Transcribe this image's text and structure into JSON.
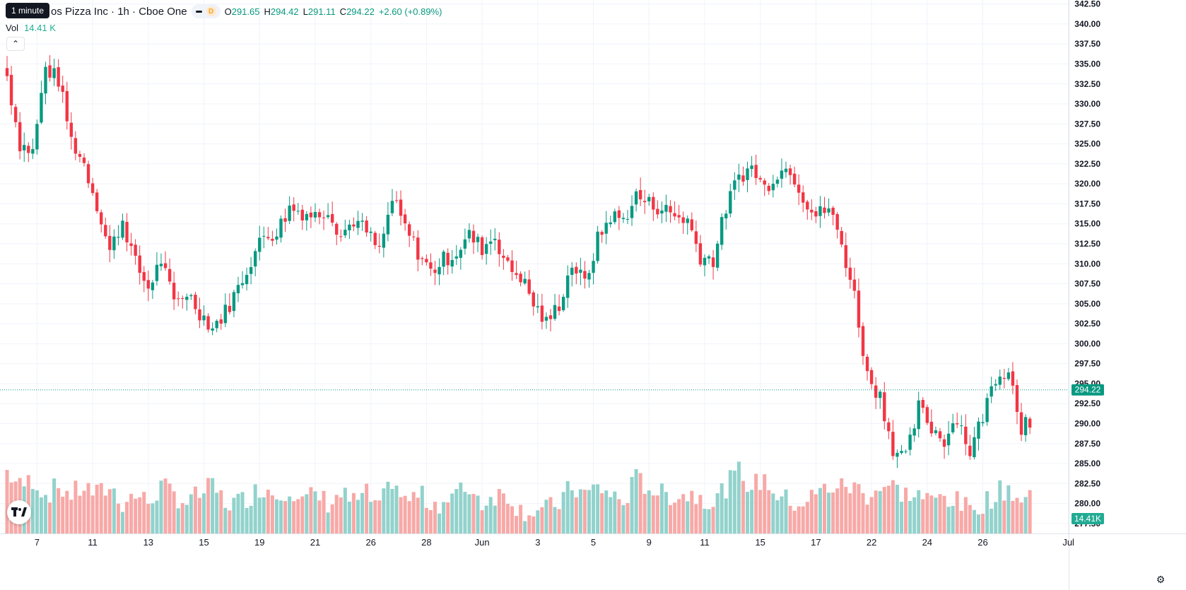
{
  "legend": {
    "title": "os Pizza Inc · 1h · Cboe One",
    "tooltip": "1 minute",
    "d_badge": "D",
    "ohlc": {
      "o_label": "O",
      "o": "291.65",
      "h_label": "H",
      "h": "294.42",
      "l_label": "L",
      "l": "291.11",
      "c_label": "C",
      "c": "294.22",
      "change": "+2.60 (+0.89%)"
    },
    "vol_label": "Vol",
    "vol_value": "14.41 K"
  },
  "colors": {
    "up": "#089981",
    "down": "#f23645",
    "vol_up": "#92d2cc",
    "vol_down": "#f7a9a7",
    "grid": "#f0f3fa",
    "price_line": "#089981"
  },
  "icons": {
    "collapse": "chevron-up-icon",
    "logo": "tradingview-logo",
    "settings": "gear-icon"
  },
  "chart_data": {
    "type": "candlestick",
    "ylim": [
      276.25,
      343.0
    ],
    "y_ticks": [
      "342.50",
      "340.00",
      "337.50",
      "335.00",
      "332.50",
      "330.00",
      "327.50",
      "325.00",
      "322.50",
      "320.00",
      "317.50",
      "315.00",
      "312.50",
      "310.00",
      "307.50",
      "305.00",
      "302.50",
      "300.00",
      "297.50",
      "295.00",
      "292.50",
      "290.00",
      "287.50",
      "285.00",
      "282.50",
      "280.00",
      "277.50"
    ],
    "x_ticks": [
      {
        "label": "7",
        "index": 7
      },
      {
        "label": "11",
        "index": 20
      },
      {
        "label": "13",
        "index": 33
      },
      {
        "label": "15",
        "index": 46
      },
      {
        "label": "19",
        "index": 59
      },
      {
        "label": "21",
        "index": 72
      },
      {
        "label": "26",
        "index": 85
      },
      {
        "label": "28",
        "index": 98
      },
      {
        "label": "Jun",
        "index": 111
      },
      {
        "label": "3",
        "index": 124
      },
      {
        "label": "5",
        "index": 137
      },
      {
        "label": "9",
        "index": 150
      },
      {
        "label": "11",
        "index": 163
      },
      {
        "label": "15",
        "index": 176
      },
      {
        "label": "17",
        "index": 189
      },
      {
        "label": "22",
        "index": 202
      },
      {
        "label": "24",
        "index": 215
      },
      {
        "label": "26",
        "index": 228
      },
      {
        "label": "Jul",
        "index": 248
      }
    ],
    "last_price": "294.22",
    "last_volume": "14.41K",
    "anchors": [
      [
        0,
        333.5,
        8
      ],
      [
        3,
        325.0,
        6
      ],
      [
        6,
        324.0,
        7
      ],
      [
        9,
        334.5,
        5
      ],
      [
        12,
        333.0,
        6
      ],
      [
        15,
        325.5,
        5
      ],
      [
        18,
        322.5,
        6
      ],
      [
        21,
        317.5,
        5
      ],
      [
        24,
        311.5,
        6
      ],
      [
        27,
        315.5,
        4
      ],
      [
        30,
        310.0,
        5
      ],
      [
        33,
        307.0,
        4
      ],
      [
        36,
        310.5,
        6
      ],
      [
        39,
        305.0,
        5
      ],
      [
        42,
        306.5,
        4
      ],
      [
        45,
        304.0,
        5
      ],
      [
        48,
        302.0,
        6
      ],
      [
        51,
        304.0,
        4
      ],
      [
        54,
        307.0,
        4
      ],
      [
        57,
        310.5,
        5
      ],
      [
        60,
        313.5,
        6
      ],
      [
        63,
        314.0,
        5
      ],
      [
        66,
        317.0,
        6
      ],
      [
        69,
        316.5,
        4
      ],
      [
        72,
        316.0,
        5
      ],
      [
        75,
        317.0,
        4
      ],
      [
        78,
        313.5,
        5
      ],
      [
        81,
        315.5,
        4
      ],
      [
        84,
        314.0,
        5
      ],
      [
        87,
        311.5,
        3
      ],
      [
        90,
        318.0,
        7
      ],
      [
        93,
        314.5,
        4
      ],
      [
        96,
        311.5,
        5
      ],
      [
        99,
        309.0,
        4
      ],
      [
        102,
        310.5,
        4
      ],
      [
        105,
        311.5,
        5
      ],
      [
        108,
        313.5,
        6
      ],
      [
        111,
        312.0,
        4
      ],
      [
        114,
        313.5,
        5
      ],
      [
        117,
        309.5,
        5
      ],
      [
        120,
        308.5,
        3
      ],
      [
        123,
        305.0,
        3
      ],
      [
        126,
        302.5,
        3
      ],
      [
        129,
        305.0,
        4
      ],
      [
        132,
        310.0,
        6
      ],
      [
        135,
        307.5,
        5
      ],
      [
        138,
        313.0,
        6
      ],
      [
        141,
        316.0,
        5
      ],
      [
        144,
        315.5,
        4
      ],
      [
        147,
        318.5,
        7
      ],
      [
        150,
        317.5,
        6
      ],
      [
        153,
        317.0,
        5
      ],
      [
        156,
        316.0,
        5
      ],
      [
        159,
        315.5,
        5
      ],
      [
        162,
        311.0,
        5
      ],
      [
        165,
        310.5,
        4
      ],
      [
        168,
        317.0,
        6
      ],
      [
        171,
        321.0,
        8
      ],
      [
        174,
        322.0,
        6
      ],
      [
        177,
        319.5,
        7
      ],
      [
        180,
        321.5,
        5
      ],
      [
        183,
        322.0,
        4
      ],
      [
        186,
        318.5,
        4
      ],
      [
        189,
        316.0,
        5
      ],
      [
        192,
        317.0,
        6
      ],
      [
        195,
        312.5,
        6
      ],
      [
        198,
        306.0,
        6
      ],
      [
        201,
        296.0,
        5
      ],
      [
        204,
        293.5,
        6
      ],
      [
        207,
        287.0,
        6
      ],
      [
        210,
        285.5,
        5
      ],
      [
        213,
        292.0,
        5
      ],
      [
        216,
        289.5,
        4
      ],
      [
        219,
        288.0,
        5
      ],
      [
        222,
        291.0,
        4
      ],
      [
        225,
        286.5,
        3
      ],
      [
        228,
        291.0,
        4
      ],
      [
        231,
        296.0,
        5
      ],
      [
        234,
        297.0,
        6
      ],
      [
        237,
        289.5,
        4
      ],
      [
        239,
        294.2,
        5
      ]
    ]
  }
}
